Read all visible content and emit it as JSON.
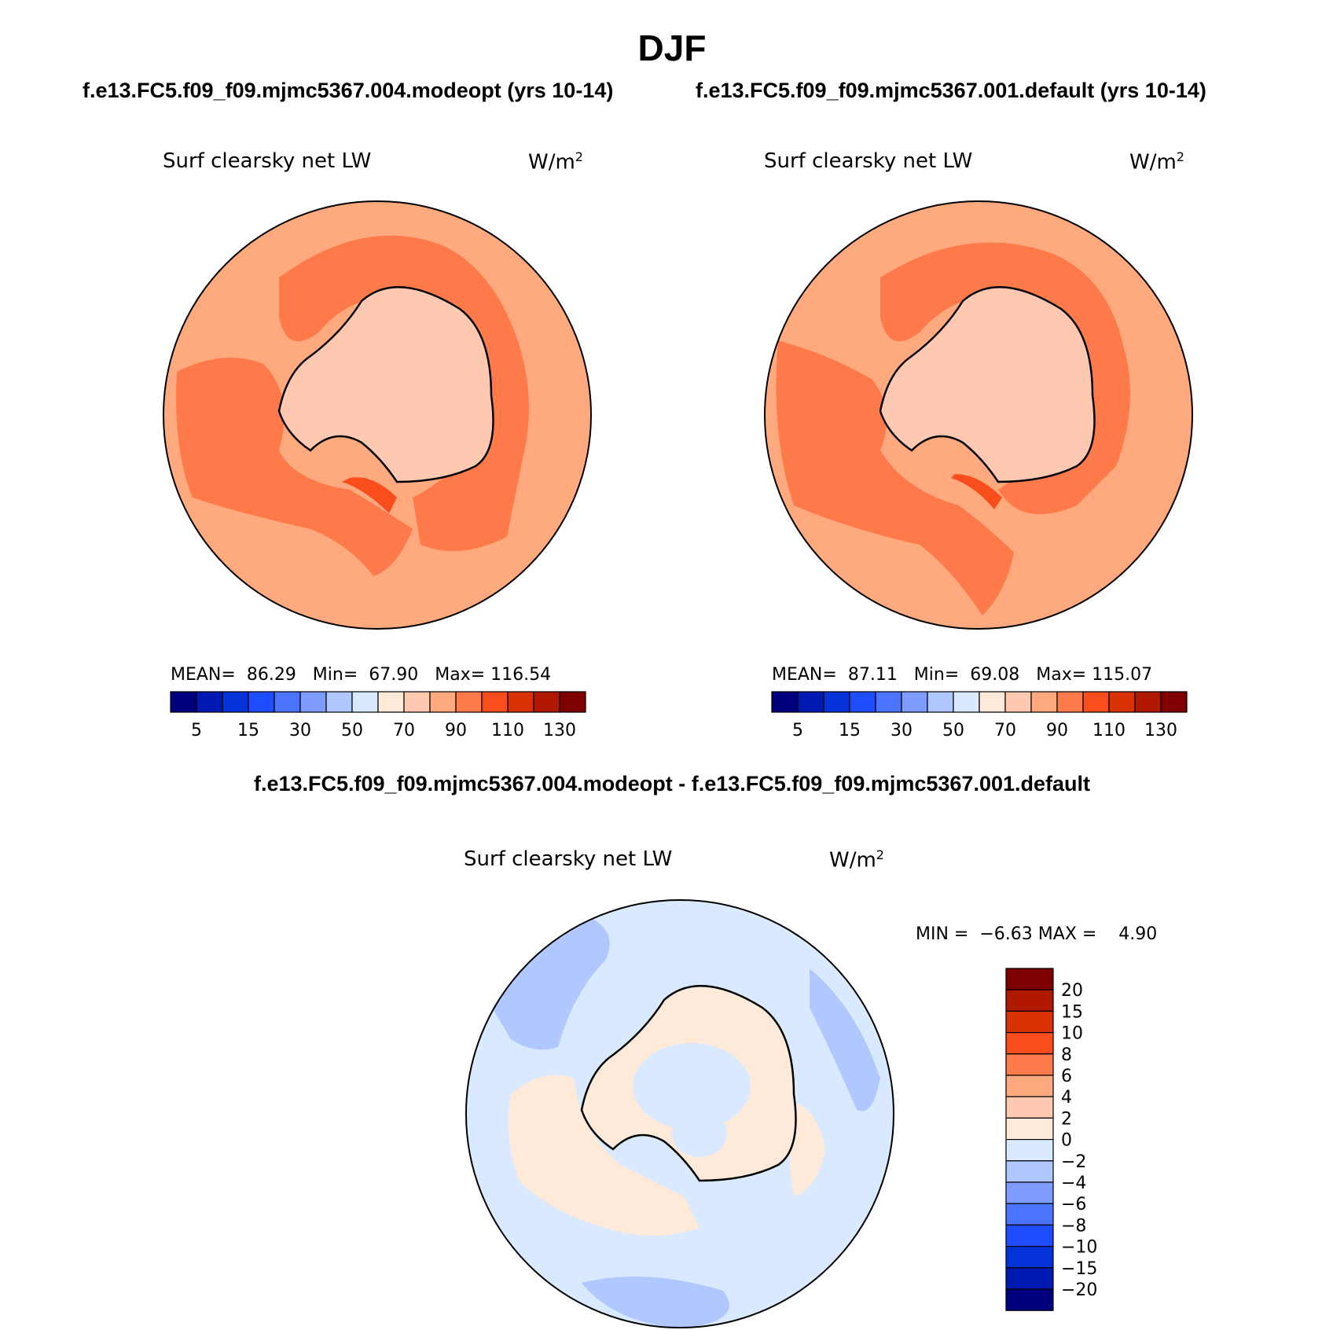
{
  "page": {
    "title": "DJF",
    "left_case": "f.e13.FC5.f09_f09.mjmc5367.004.modeopt (yrs 10-14)",
    "right_case": "f.e13.FC5.f09_f09.mjmc5367.001.default (yrs 10-14)",
    "diff_case": "f.e13.FC5.f09_f09.mjmc5367.004.modeopt - f.e13.FC5.f09_f09.mjmc5367.001.default"
  },
  "colors": {
    "abs_scale": [
      "#00007f",
      "#0019b0",
      "#0232d8",
      "#1d4dff",
      "#4a73ff",
      "#7e9cff",
      "#b1c7ff",
      "#d9e9ff",
      "#ffe9d9",
      "#ffc9b1",
      "#ffa97e",
      "#ff7a4a",
      "#f94d1d",
      "#d83202",
      "#b01900",
      "#7f0000"
    ],
    "diff_scale": [
      "#00007f",
      "#0019b0",
      "#0232d8",
      "#1d4dff",
      "#4a73ff",
      "#7e9cff",
      "#b1c7ff",
      "#d9e9ff",
      "#ffe9d9",
      "#ffc9b1",
      "#ffa97e",
      "#ff7a4a",
      "#f94d1d",
      "#d83202",
      "#b01900",
      "#7f0000"
    ],
    "coast": "#000000"
  },
  "chart_data": [
    {
      "type": "heatmap",
      "projection": "south-polar-stereographic",
      "title": "Surf clearsky net LW",
      "units_base": "W/m",
      "units_exp": "2",
      "stats": {
        "mean_label": "MEAN=",
        "mean": "86.29",
        "min_label": "Min=",
        "min": "67.90",
        "max_label": "Max=",
        "max": "116.54"
      },
      "colorbar_ticks": [
        "5",
        "15",
        "30",
        "50",
        "70",
        "90",
        "110",
        "130"
      ],
      "levels": [
        5,
        10,
        15,
        20,
        30,
        40,
        50,
        60,
        70,
        80,
        90,
        100,
        110,
        120,
        130
      ],
      "dominant_range": [
        80,
        110
      ]
    },
    {
      "type": "heatmap",
      "projection": "south-polar-stereographic",
      "title": "Surf clearsky net LW",
      "units_base": "W/m",
      "units_exp": "2",
      "stats": {
        "mean_label": "MEAN=",
        "mean": "87.11",
        "min_label": "Min=",
        "min": "69.08",
        "max_label": "Max=",
        "max": "115.07"
      },
      "colorbar_ticks": [
        "5",
        "15",
        "30",
        "50",
        "70",
        "90",
        "110",
        "130"
      ],
      "levels": [
        5,
        10,
        15,
        20,
        30,
        40,
        50,
        60,
        70,
        80,
        90,
        100,
        110,
        120,
        130
      ],
      "dominant_range": [
        80,
        110
      ]
    },
    {
      "type": "heatmap",
      "projection": "south-polar-stereographic",
      "title": "Surf clearsky net LW",
      "units_base": "W/m",
      "units_exp": "2",
      "stats": {
        "min_label": "MIN =",
        "min": "−6.63",
        "max_label": "MAX =",
        "max": "4.90"
      },
      "colorbar_ticks": [
        "20",
        "15",
        "10",
        "8",
        "6",
        "4",
        "2",
        "0",
        "−2",
        "−4",
        "−6",
        "−8",
        "−10",
        "−15",
        "−20"
      ],
      "levels": [
        -20,
        -15,
        -10,
        -8,
        -6,
        -4,
        -2,
        0,
        2,
        4,
        6,
        8,
        10,
        15,
        20
      ],
      "dominant_range": [
        -2,
        2
      ]
    }
  ]
}
